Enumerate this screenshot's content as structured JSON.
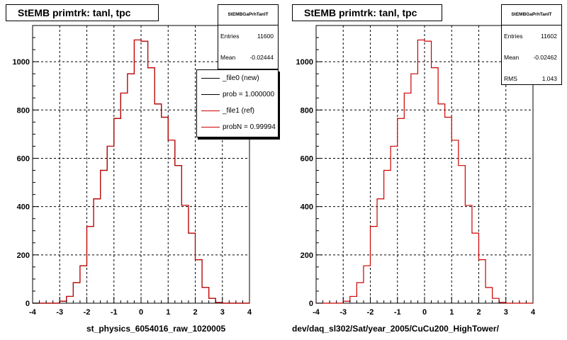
{
  "chart_data": [
    {
      "type": "step-histogram",
      "title": "StEMB primtrk: tanl, tpc",
      "xlabel": "st_physics_6054016_raw_1020005",
      "xlim": [
        -4,
        4
      ],
      "ylim": [
        0,
        1150
      ],
      "xticks": [
        -4,
        -3,
        -2,
        -1,
        0,
        1,
        2,
        3,
        4
      ],
      "yticks": [
        0,
        200,
        400,
        600,
        800,
        1000
      ],
      "grid": true,
      "bin_edges": [
        -4.0,
        -3.75,
        -3.5,
        -3.25,
        -3.0,
        -2.75,
        -2.5,
        -2.25,
        -2.0,
        -1.75,
        -1.5,
        -1.25,
        -1.0,
        -0.75,
        -0.5,
        -0.25,
        0.0,
        0.25,
        0.5,
        0.75,
        1.0,
        1.25,
        1.5,
        1.75,
        2.0,
        2.25,
        2.5,
        2.75,
        3.0,
        3.25,
        3.5,
        3.75,
        4.0
      ],
      "series": [
        {
          "name": "_file0 (new)",
          "color": "#000000",
          "values": [
            0,
            0,
            0,
            0,
            8,
            28,
            85,
            155,
            318,
            432,
            550,
            650,
            765,
            870,
            950,
            1090,
            1085,
            975,
            825,
            770,
            675,
            570,
            405,
            290,
            180,
            65,
            20,
            3,
            0,
            0,
            0,
            0
          ]
        },
        {
          "name": "_file1 (ref)",
          "color": "#cc0000",
          "values": [
            0,
            0,
            0,
            0,
            8,
            28,
            85,
            155,
            318,
            432,
            550,
            650,
            765,
            870,
            950,
            1090,
            1085,
            975,
            825,
            770,
            675,
            570,
            405,
            290,
            180,
            65,
            20,
            3,
            0,
            0,
            0,
            0
          ]
        }
      ],
      "stats": {
        "header": "StEMBGaPrhTanlT",
        "entries_label": "Entries",
        "entries": "11600",
        "mean_label": "Mean",
        "mean": "-0.02444"
      },
      "legend": [
        "_file0 (new)",
        "prob = 1.000000",
        "_file1 (ref)",
        "probN = 0.99994"
      ],
      "legend_placement": "top-right"
    },
    {
      "type": "step-histogram",
      "title": "StEMB primtrk: tanl, tpc",
      "xlabel": "dev/daq_sl302/Sat/year_2005/CuCu200_HighTower/",
      "xlim": [
        -4,
        4
      ],
      "ylim": [
        0,
        1150
      ],
      "xticks": [
        -4,
        -3,
        -2,
        -1,
        0,
        1,
        2,
        3,
        4
      ],
      "yticks": [
        0,
        200,
        400,
        600,
        800,
        1000
      ],
      "grid": true,
      "bin_edges": [
        -4.0,
        -3.75,
        -3.5,
        -3.25,
        -3.0,
        -2.75,
        -2.5,
        -2.25,
        -2.0,
        -1.75,
        -1.5,
        -1.25,
        -1.0,
        -0.75,
        -0.5,
        -0.25,
        0.0,
        0.25,
        0.5,
        0.75,
        1.0,
        1.25,
        1.5,
        1.75,
        2.0,
        2.25,
        2.5,
        2.75,
        3.0,
        3.25,
        3.5,
        3.75,
        4.0
      ],
      "series": [
        {
          "color": "#cc0000",
          "values": [
            0,
            0,
            0,
            0,
            8,
            28,
            85,
            155,
            318,
            432,
            550,
            650,
            765,
            870,
            950,
            1090,
            1085,
            975,
            825,
            770,
            675,
            570,
            405,
            290,
            180,
            65,
            20,
            3,
            0,
            0,
            0,
            0
          ]
        }
      ],
      "stats": {
        "header": "StEMBGaPrhTanlT",
        "entries_label": "Entries",
        "entries": "11602",
        "mean_label": "Mean",
        "mean": "-0.02462",
        "rms_label": "RMS",
        "rms": "1.043"
      }
    }
  ]
}
